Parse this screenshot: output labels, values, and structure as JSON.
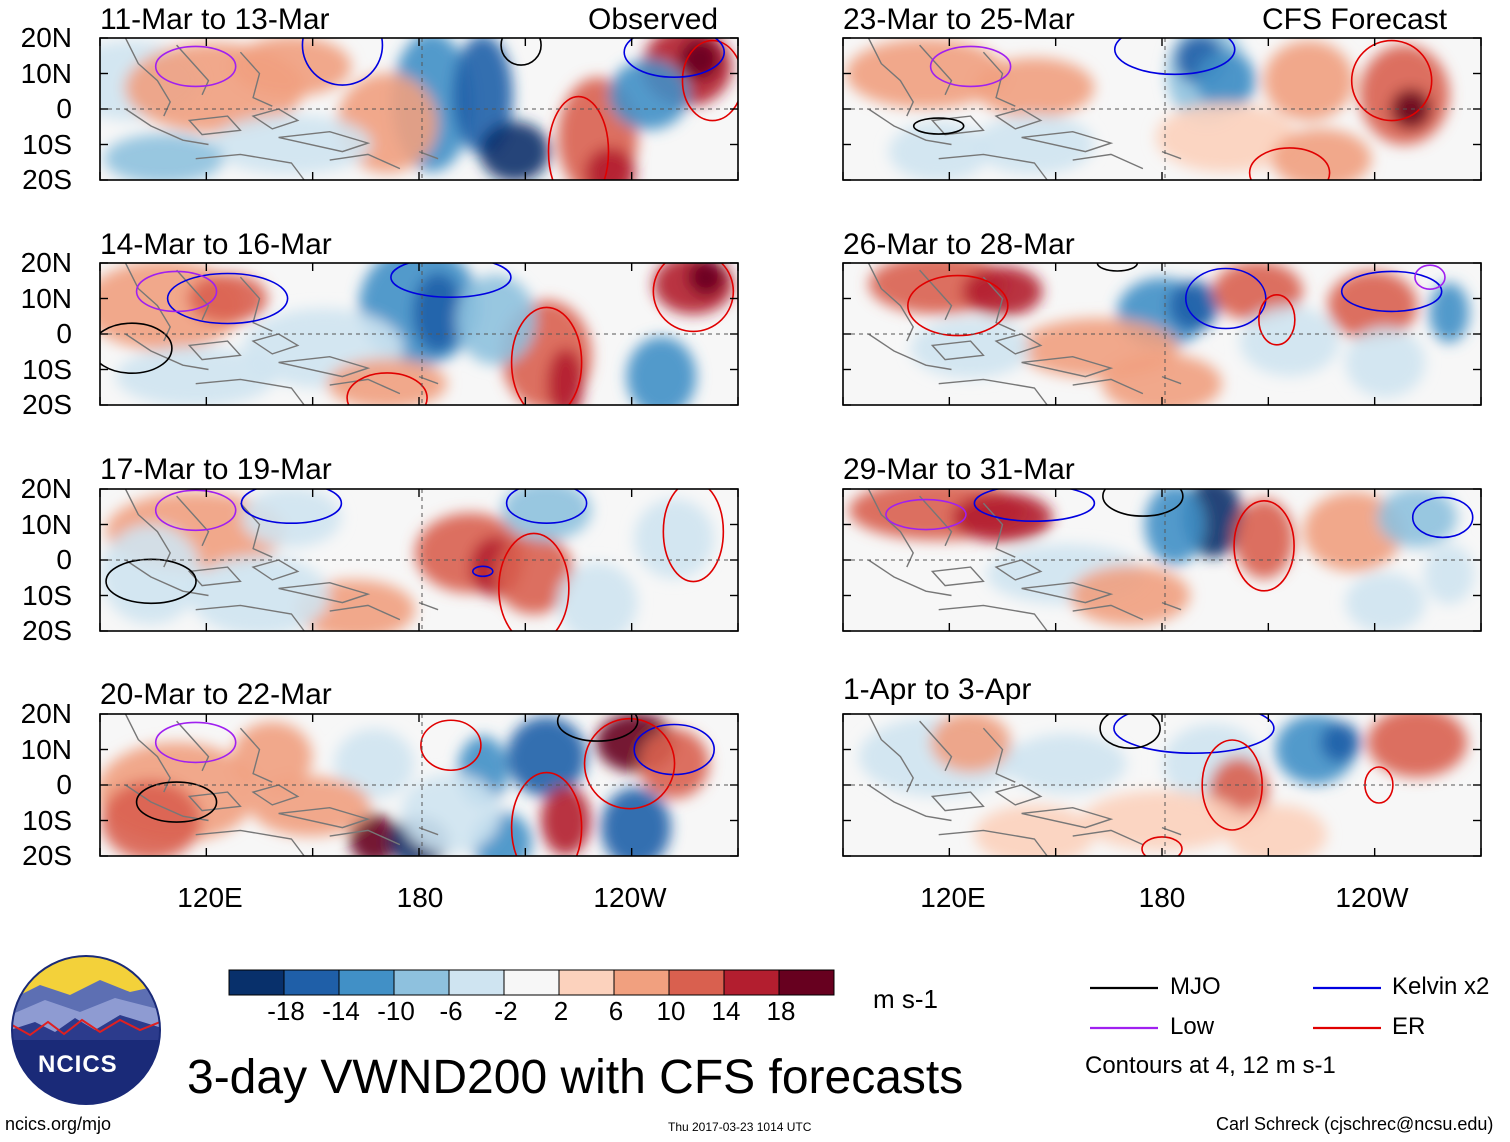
{
  "header": {
    "observed_label": "Observed",
    "forecast_label": "CFS Forecast"
  },
  "panels": {
    "observed": [
      {
        "period": "11-Mar to 13-Mar"
      },
      {
        "period": "14-Mar to 16-Mar"
      },
      {
        "period": "17-Mar to 19-Mar"
      },
      {
        "period": "20-Mar to 22-Mar"
      }
    ],
    "forecast": [
      {
        "period": "23-Mar to 25-Mar"
      },
      {
        "period": "26-Mar to 28-Mar"
      },
      {
        "period": "29-Mar to 31-Mar"
      },
      {
        "period": "1-Apr to 3-Apr"
      }
    ]
  },
  "axes": {
    "lat_ticks": [
      "20N",
      "10N",
      "0",
      "10S",
      "20S"
    ],
    "lon_ticks": [
      "120E",
      "180",
      "120W"
    ],
    "lat_range": [
      -20,
      20
    ],
    "lon_range_deg_east": [
      90,
      270
    ]
  },
  "colorbar": {
    "ticks": [
      "-18",
      "-14",
      "-10",
      "-6",
      "-2",
      "2",
      "6",
      "10",
      "14",
      "18"
    ],
    "colors": [
      "#08306b",
      "#1f5fa8",
      "#4190c6",
      "#8ec1de",
      "#cfe4f1",
      "#f7f7f7",
      "#fcd2bd",
      "#f1a07f",
      "#d9604f",
      "#b31e2f",
      "#67001f"
    ],
    "units": "m s-1"
  },
  "legend": {
    "items": [
      {
        "label": "MJO",
        "color": "#000000"
      },
      {
        "label": "Kelvin x2",
        "color": "#0000e0"
      },
      {
        "label": "Low",
        "color": "#a020f0"
      },
      {
        "label": "ER",
        "color": "#e00000"
      }
    ],
    "note": "Contours at 4, 12 m s-1"
  },
  "footer": {
    "title": "3-day VWND200 with CFS forecasts",
    "url": "ncics.org/mjo",
    "timestamp": "Thu 2017-03-23 1014 UTC",
    "credit": "Carl Schreck (cjschrec@ncsu.edu)",
    "logo_text": "NCICS"
  }
}
